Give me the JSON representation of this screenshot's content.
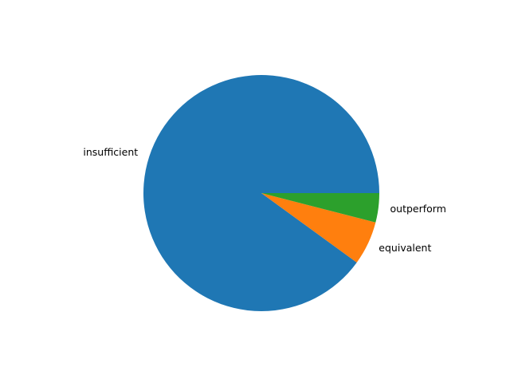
{
  "chart_data": {
    "type": "pie",
    "title": "",
    "categories": [
      "insufficient",
      "equivalent",
      "outperform"
    ],
    "values": [
      90,
      6,
      4
    ],
    "colors": [
      "#1f77b4",
      "#ff7f0e",
      "#2ca02c"
    ],
    "start_angle_deg": 0,
    "direction": "counterclockwise"
  }
}
